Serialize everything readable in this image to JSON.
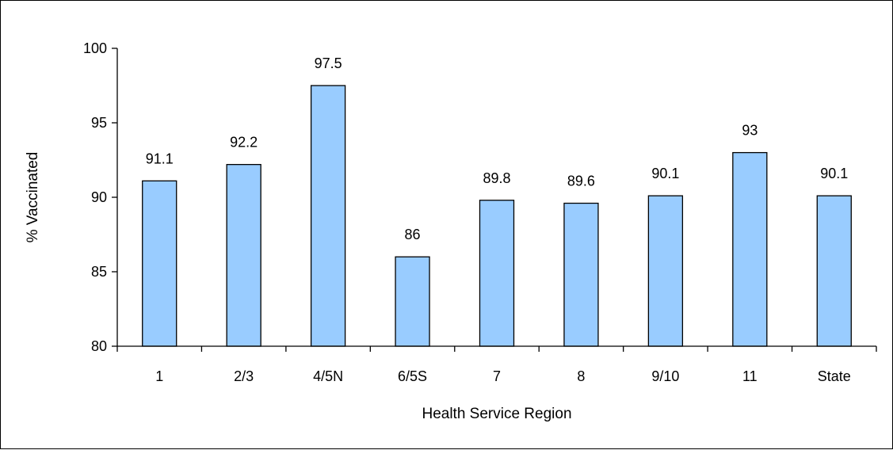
{
  "chart_data": {
    "type": "bar",
    "title": "",
    "xlabel": "Health Service Region",
    "ylabel": "% Vaccinated",
    "categories": [
      "1",
      "2/3",
      "4/5N",
      "6/5S",
      "7",
      "8",
      "9/10",
      "11",
      "State"
    ],
    "values": [
      91.1,
      92.2,
      97.5,
      86,
      89.8,
      89.6,
      90.1,
      93,
      90.1
    ],
    "data_labels": [
      "91.1",
      "92.2",
      "97.5",
      "86",
      "89.8",
      "89.6",
      "90.1",
      "93",
      "90.1"
    ],
    "ylim": [
      80,
      100
    ],
    "yticks": [
      80,
      85,
      90,
      95,
      100
    ],
    "ytick_labels": [
      "80",
      "85",
      "90",
      "95",
      "100"
    ],
    "grid": false,
    "legend": "none",
    "colors": {
      "bar_fill": "#99ccff",
      "bar_stroke": "#000000"
    }
  }
}
